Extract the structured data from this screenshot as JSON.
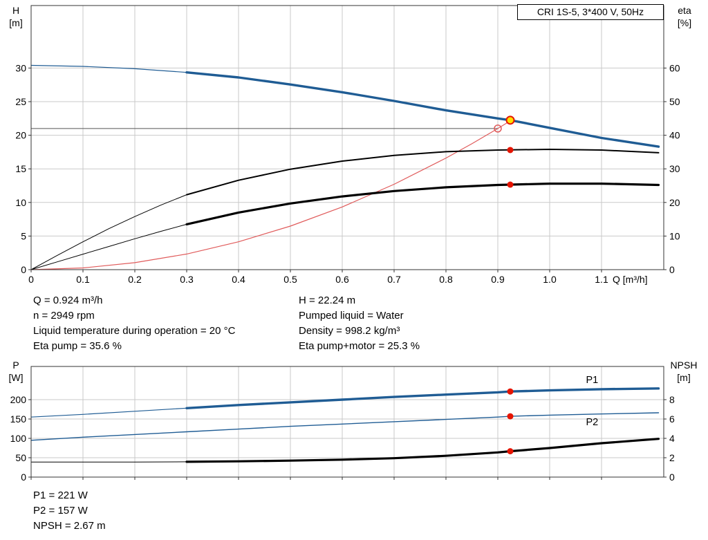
{
  "title_box": {
    "label": "CRI 1S-5, 3*400 V, 50Hz"
  },
  "info_top": {
    "left": [
      "Q = 0.924 m³/h",
      "n = 2949 rpm",
      "Liquid temperature during operation = 20 °C",
      "Eta pump = 35.6 %"
    ],
    "right": [
      "H = 22.24 m",
      "Pumped liquid = Water",
      "Density = 998.2 kg/m³",
      "Eta pump+motor = 25.3 %"
    ]
  },
  "info_bottom": [
    "P1 = 221 W",
    "P2 = 157 W",
    "NPSH = 2.67 m"
  ],
  "colors": {
    "curve_blue": "#1f5c94",
    "curve_black": "#000000",
    "curve_red": "#e05a5a",
    "marker_red": "#e51400",
    "marker_yellow": "#ffdf00",
    "grid": "#c9c9c9"
  },
  "chart_data": [
    {
      "type": "line",
      "x": {
        "label": "Q [m³/h]",
        "min": 0,
        "max": 1.22,
        "tick_values": [
          0,
          0.1,
          0.2,
          0.3,
          0.4,
          0.5,
          0.6,
          0.7,
          0.8,
          0.9,
          1.0,
          1.1
        ],
        "tick_labels": [
          "0",
          "0.1",
          "0.2",
          "0.3",
          "0.4",
          "0.5",
          "0.6",
          "0.7",
          "0.8",
          "0.9",
          "1.0",
          "1.1"
        ],
        "show_tick_labels": true
      },
      "y_left": {
        "name": "H",
        "unit": "[m]",
        "min": 0,
        "max": 39.3,
        "tick_values": [
          0,
          5,
          10,
          15,
          20,
          25,
          30
        ],
        "tick_labels": [
          "0",
          "5",
          "10",
          "15",
          "20",
          "25",
          "30"
        ]
      },
      "y_right": {
        "name": "eta",
        "unit": "[%]",
        "min": 0,
        "max": 78.6,
        "tick_values": [
          0,
          10,
          20,
          30,
          40,
          50,
          60
        ],
        "tick_labels": [
          "0",
          "10",
          "20",
          "30",
          "40",
          "50",
          "60"
        ]
      },
      "grid_color": "#c9c9c9",
      "series": [
        {
          "name": "duty-head-line",
          "axis": "left",
          "color": "#555555",
          "width": 1,
          "points": [
            [
              0,
              21
            ],
            [
              0.9,
              21
            ]
          ]
        },
        {
          "name": "system-curve",
          "axis": "left",
          "color": "#e05a5a",
          "width": 1.2,
          "points": [
            [
              0,
              0
            ],
            [
              0.1,
              0.26
            ],
            [
              0.2,
              1.04
            ],
            [
              0.3,
              2.33
            ],
            [
              0.4,
              4.15
            ],
            [
              0.5,
              6.48
            ],
            [
              0.6,
              9.33
            ],
            [
              0.7,
              12.71
            ],
            [
              0.8,
              16.6
            ],
            [
              0.85,
              18.73
            ],
            [
              0.9,
              21.0
            ],
            [
              0.924,
              22.14
            ]
          ]
        },
        {
          "name": "eta-pump-curve-low",
          "axis": "right",
          "color": "#000000",
          "width": 1,
          "points": [
            [
              0,
              0
            ],
            [
              0.05,
              4.2
            ],
            [
              0.1,
              8.3
            ],
            [
              0.15,
              12.2
            ],
            [
              0.2,
              15.8
            ],
            [
              0.25,
              19.2
            ],
            [
              0.3,
              22.3
            ]
          ]
        },
        {
          "name": "eta-pump-curve",
          "axis": "right",
          "color": "#000000",
          "width": 2,
          "points": [
            [
              0.3,
              22.3
            ],
            [
              0.4,
              26.6
            ],
            [
              0.5,
              29.9
            ],
            [
              0.6,
              32.3
            ],
            [
              0.7,
              34.0
            ],
            [
              0.8,
              35.1
            ],
            [
              0.9,
              35.6
            ],
            [
              1.0,
              35.8
            ],
            [
              1.1,
              35.6
            ],
            [
              1.21,
              34.8
            ]
          ]
        },
        {
          "name": "eta-pump-motor-curve-low",
          "axis": "right",
          "color": "#000000",
          "width": 1,
          "points": [
            [
              0,
              0
            ],
            [
              0.05,
              2.3
            ],
            [
              0.1,
              4.6
            ],
            [
              0.15,
              6.9
            ],
            [
              0.2,
              9.2
            ],
            [
              0.25,
              11.4
            ],
            [
              0.3,
              13.5
            ]
          ]
        },
        {
          "name": "eta-pump-motor-curve",
          "axis": "right",
          "color": "#000000",
          "width": 3.2,
          "points": [
            [
              0.3,
              13.5
            ],
            [
              0.4,
              17.0
            ],
            [
              0.5,
              19.7
            ],
            [
              0.6,
              21.8
            ],
            [
              0.7,
              23.4
            ],
            [
              0.8,
              24.5
            ],
            [
              0.9,
              25.2
            ],
            [
              1.0,
              25.6
            ],
            [
              1.1,
              25.6
            ],
            [
              1.21,
              25.2
            ]
          ]
        },
        {
          "name": "head-curve-low",
          "axis": "left",
          "color": "#1f5c94",
          "width": 1.2,
          "points": [
            [
              0,
              30.4
            ],
            [
              0.1,
              30.25
            ],
            [
              0.2,
              29.9
            ],
            [
              0.3,
              29.35
            ]
          ]
        },
        {
          "name": "head-curve",
          "axis": "left",
          "color": "#1f5c94",
          "width": 3.4,
          "points": [
            [
              0.3,
              29.35
            ],
            [
              0.4,
              28.6
            ],
            [
              0.5,
              27.55
            ],
            [
              0.6,
              26.4
            ],
            [
              0.7,
              25.1
            ],
            [
              0.8,
              23.7
            ],
            [
              0.9,
              22.5
            ],
            [
              0.924,
              22.24
            ],
            [
              1.0,
              21.1
            ],
            [
              1.1,
              19.6
            ],
            [
              1.21,
              18.3
            ]
          ]
        }
      ],
      "markers": [
        {
          "name": "requested-duty-point",
          "axis": "left",
          "q": 0.9,
          "v": 21.0,
          "r": 5,
          "fill": "none",
          "stroke": "#e05a5a",
          "stroke_width": 1.5
        },
        {
          "name": "duty-point",
          "axis": "left",
          "q": 0.924,
          "v": 22.24,
          "r": 5.5,
          "fill": "#ffdf00",
          "stroke": "#e51400",
          "stroke_width": 2
        },
        {
          "name": "eta-pump-point",
          "axis": "right",
          "q": 0.924,
          "v": 35.6,
          "r": 4.5,
          "fill": "#e51400",
          "stroke": "none",
          "stroke_width": 0
        },
        {
          "name": "eta-pump-motor-point",
          "axis": "right",
          "q": 0.924,
          "v": 25.3,
          "r": 4.5,
          "fill": "#e51400",
          "stroke": "none",
          "stroke_width": 0
        }
      ],
      "annotations": []
    },
    {
      "type": "line",
      "x": {
        "label": "",
        "min": 0,
        "max": 1.22,
        "tick_values": [
          0,
          0.1,
          0.2,
          0.3,
          0.4,
          0.5,
          0.6,
          0.7,
          0.8,
          0.9,
          1.0,
          1.1
        ],
        "tick_labels": [
          "0",
          "0.1",
          "0.2",
          "0.3",
          "0.4",
          "0.5",
          "0.6",
          "0.7",
          "0.8",
          "0.9",
          "1.0",
          "1.1"
        ],
        "show_tick_labels": false
      },
      "y_left": {
        "name": "P",
        "unit": "[W]",
        "min": 0,
        "max": 285.7,
        "tick_values": [
          0,
          50,
          100,
          150,
          200
        ],
        "tick_labels": [
          "0",
          "50",
          "100",
          "150",
          "200"
        ]
      },
      "y_right": {
        "name": "NPSH",
        "unit": "[m]",
        "min": 0,
        "max": 11.43,
        "tick_values": [
          0,
          2,
          4,
          6,
          8
        ],
        "tick_labels": [
          "0",
          "2",
          "4",
          "6",
          "8"
        ]
      },
      "grid_color": "#c9c9c9",
      "series": [
        {
          "name": "npsh-curve-low",
          "axis": "right",
          "color": "#000000",
          "width": 1,
          "points": [
            [
              0,
              1.55
            ],
            [
              0.1,
              1.55
            ],
            [
              0.2,
              1.56
            ],
            [
              0.3,
              1.58
            ]
          ]
        },
        {
          "name": "npsh-curve",
          "axis": "right",
          "color": "#000000",
          "width": 3.2,
          "points": [
            [
              0.3,
              1.58
            ],
            [
              0.4,
              1.63
            ],
            [
              0.5,
              1.7
            ],
            [
              0.6,
              1.8
            ],
            [
              0.7,
              1.95
            ],
            [
              0.8,
              2.2
            ],
            [
              0.9,
              2.55
            ],
            [
              0.924,
              2.67
            ],
            [
              1.0,
              3.0
            ],
            [
              1.1,
              3.5
            ],
            [
              1.21,
              3.95
            ]
          ]
        },
        {
          "name": "p2-curve",
          "axis": "left",
          "color": "#1f5c94",
          "width": 1.4,
          "points": [
            [
              0,
              95
            ],
            [
              0.1,
              103
            ],
            [
              0.2,
              110
            ],
            [
              0.3,
              117
            ],
            [
              0.4,
              124
            ],
            [
              0.5,
              131
            ],
            [
              0.6,
              137
            ],
            [
              0.7,
              143
            ],
            [
              0.8,
              149
            ],
            [
              0.9,
              155
            ],
            [
              0.924,
              157
            ],
            [
              1.0,
              160
            ],
            [
              1.1,
              163
            ],
            [
              1.21,
              166
            ]
          ]
        },
        {
          "name": "p1-curve-low",
          "axis": "left",
          "color": "#1f5c94",
          "width": 1.2,
          "points": [
            [
              0,
              155
            ],
            [
              0.1,
              162
            ],
            [
              0.2,
              170
            ],
            [
              0.3,
              178
            ]
          ]
        },
        {
          "name": "p1-curve",
          "axis": "left",
          "color": "#1f5c94",
          "width": 3.4,
          "points": [
            [
              0.3,
              178
            ],
            [
              0.4,
              186
            ],
            [
              0.5,
              193
            ],
            [
              0.6,
              200
            ],
            [
              0.7,
              207
            ],
            [
              0.8,
              213
            ],
            [
              0.9,
              219
            ],
            [
              0.924,
              221
            ],
            [
              1.0,
              224
            ],
            [
              1.1,
              227
            ],
            [
              1.21,
              229
            ]
          ]
        }
      ],
      "markers": [
        {
          "name": "p1-point",
          "axis": "left",
          "q": 0.924,
          "v": 221,
          "r": 4.5,
          "fill": "#e51400",
          "stroke": "none",
          "stroke_width": 0
        },
        {
          "name": "p2-point",
          "axis": "left",
          "q": 0.924,
          "v": 157,
          "r": 4.5,
          "fill": "#e51400",
          "stroke": "none",
          "stroke_width": 0
        },
        {
          "name": "npsh-point",
          "axis": "right",
          "q": 0.924,
          "v": 2.67,
          "r": 4.5,
          "fill": "#e51400",
          "stroke": "none",
          "stroke_width": 0
        }
      ],
      "annotations": [
        {
          "name": "p1-label",
          "text": "P1",
          "axis": "left",
          "q": 1.07,
          "v": 243,
          "color": "#1f5c94"
        },
        {
          "name": "p2-label",
          "text": "P2",
          "axis": "left",
          "q": 1.07,
          "v": 134,
          "color": "#1f5c94"
        }
      ]
    }
  ]
}
